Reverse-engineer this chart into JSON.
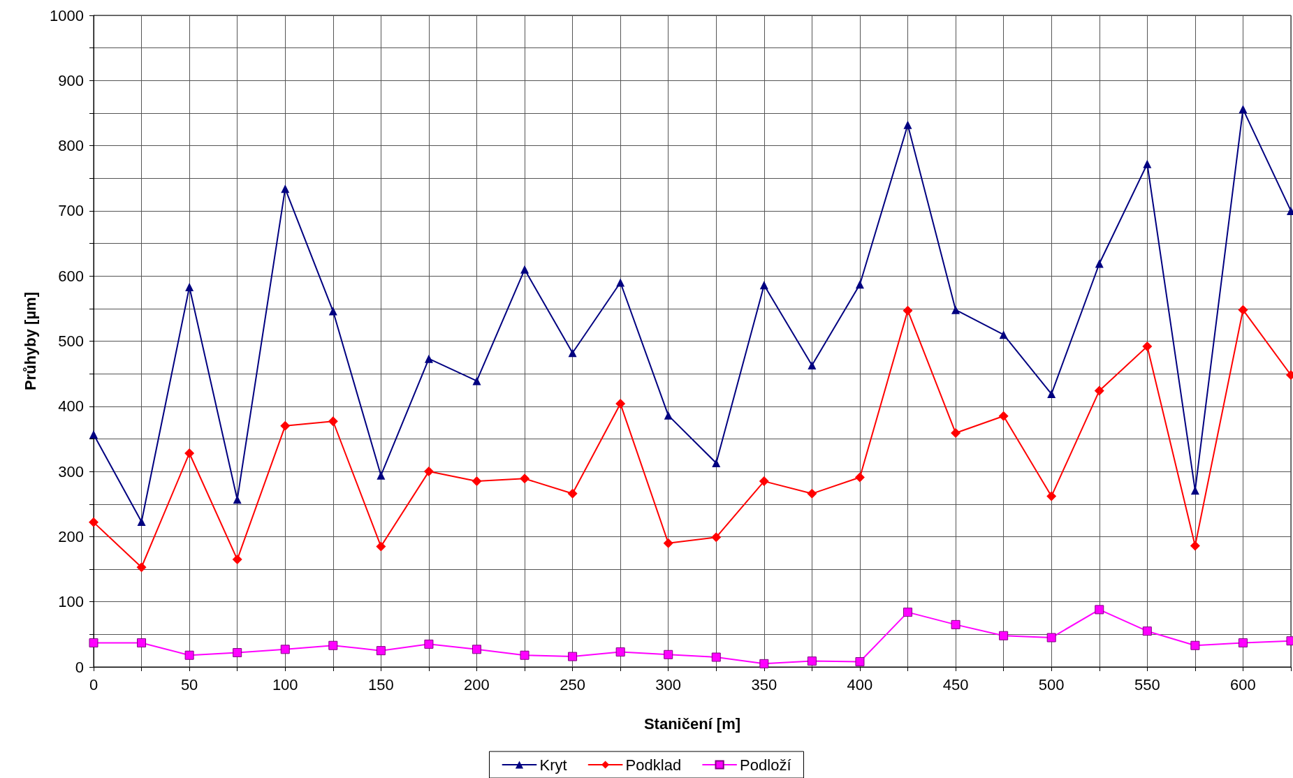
{
  "chart_data": {
    "type": "line",
    "xlabel": "Staničení [m]",
    "ylabel": "Průhyby [µm]",
    "x": [
      0,
      25,
      50,
      75,
      100,
      125,
      150,
      175,
      200,
      225,
      250,
      275,
      300,
      325,
      350,
      375,
      400,
      425,
      450,
      475,
      500,
      525,
      550,
      575,
      600,
      625
    ],
    "series": [
      {
        "name": "Kryt",
        "color": "#000080",
        "marker": "triangle",
        "values": [
          357,
          223,
          583,
          257,
          734,
          546,
          294,
          473,
          439,
          610,
          482,
          590,
          386,
          313,
          586,
          463,
          587,
          832,
          548,
          510,
          419,
          619,
          772,
          271,
          856,
          700
        ]
      },
      {
        "name": "Podklad",
        "color": "#ff0000",
        "marker": "diamond",
        "values": [
          222,
          153,
          328,
          165,
          370,
          377,
          185,
          300,
          285,
          289,
          266,
          404,
          190,
          199,
          285,
          266,
          291,
          547,
          359,
          385,
          262,
          424,
          492,
          186,
          548,
          448
        ]
      },
      {
        "name": "Podloží",
        "color": "#ff00ff",
        "marker": "square",
        "values": [
          37,
          37,
          18,
          22,
          27,
          33,
          25,
          35,
          27,
          18,
          16,
          23,
          19,
          15,
          5,
          9,
          8,
          84,
          65,
          48,
          45,
          88,
          55,
          33,
          37,
          40
        ]
      }
    ],
    "xlim": [
      0,
      625
    ],
    "xticks": [
      0,
      {
        "value": 25,
        "label": null
      },
      50,
      {
        "value": 75,
        "label": null
      },
      100,
      {
        "value": 125,
        "label": null
      },
      150,
      {
        "value": 175,
        "label": null
      },
      200,
      {
        "value": 225,
        "label": null
      },
      250,
      {
        "value": 275,
        "label": null
      },
      300,
      {
        "value": 325,
        "label": null
      },
      350,
      {
        "value": 375,
        "label": null
      },
      400,
      {
        "value": 425,
        "label": null
      },
      450,
      {
        "value": 475,
        "label": null
      },
      500,
      {
        "value": 525,
        "label": null
      },
      550,
      {
        "value": 575,
        "label": null
      },
      600,
      {
        "value": 625,
        "label": null
      }
    ],
    "ylim": [
      0,
      1000
    ],
    "yticks": [
      0,
      {
        "value": 50,
        "label": null
      },
      100,
      {
        "value": 150,
        "label": null
      },
      200,
      {
        "value": 250,
        "label": null
      },
      300,
      {
        "value": 350,
        "label": null
      },
      400,
      {
        "value": 450,
        "label": null
      },
      500,
      {
        "value": 550,
        "label": null
      },
      600,
      {
        "value": 650,
        "label": null
      },
      700,
      {
        "value": 750,
        "label": null
      },
      800,
      {
        "value": 850,
        "label": null
      },
      900,
      {
        "value": 950,
        "label": null
      },
      1000
    ],
    "grid": true,
    "legend": "bottom",
    "line_style": "solid"
  }
}
